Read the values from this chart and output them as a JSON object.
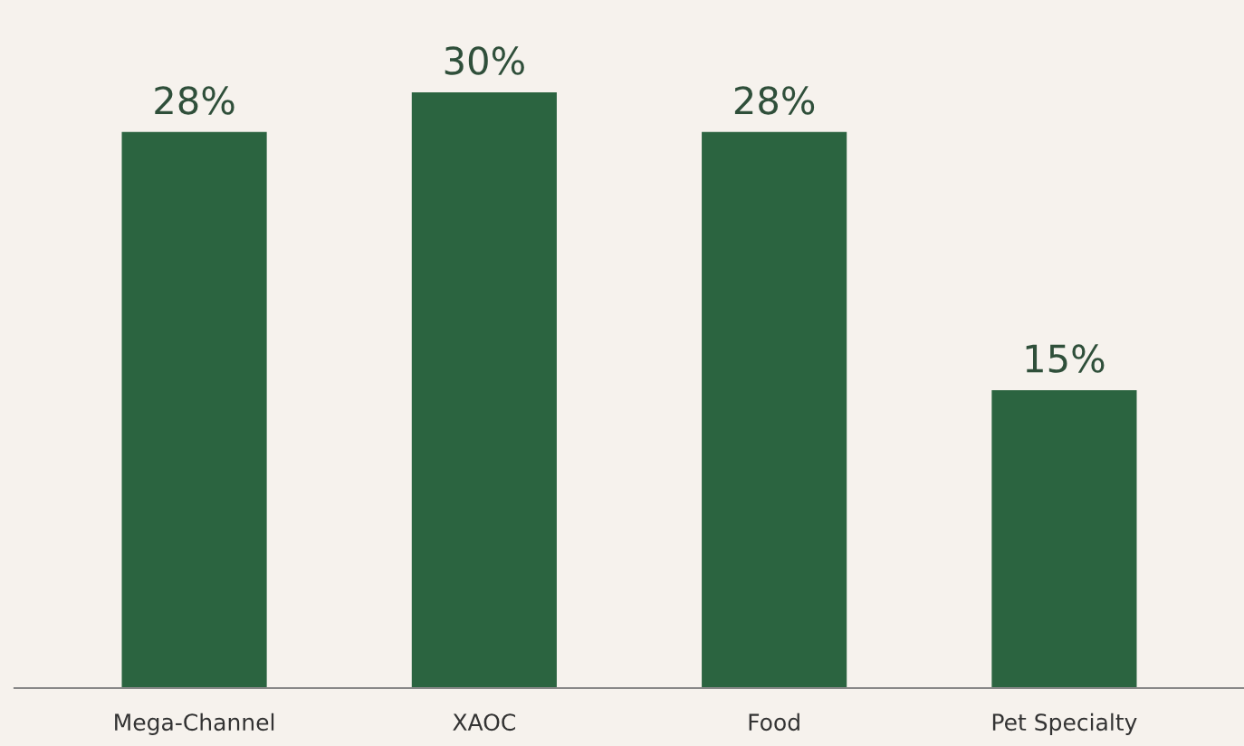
{
  "chart_data": {
    "type": "bar",
    "categories": [
      "Mega-Channel",
      "XAOC",
      "Food",
      "Pet Specialty"
    ],
    "values": [
      28,
      30,
      28,
      15
    ],
    "color": "#2b6440",
    "data_labels": true,
    "value_labels": [
      "28%",
      "30%",
      "28%",
      "15%"
    ],
    "grid": false,
    "legend": false
  }
}
